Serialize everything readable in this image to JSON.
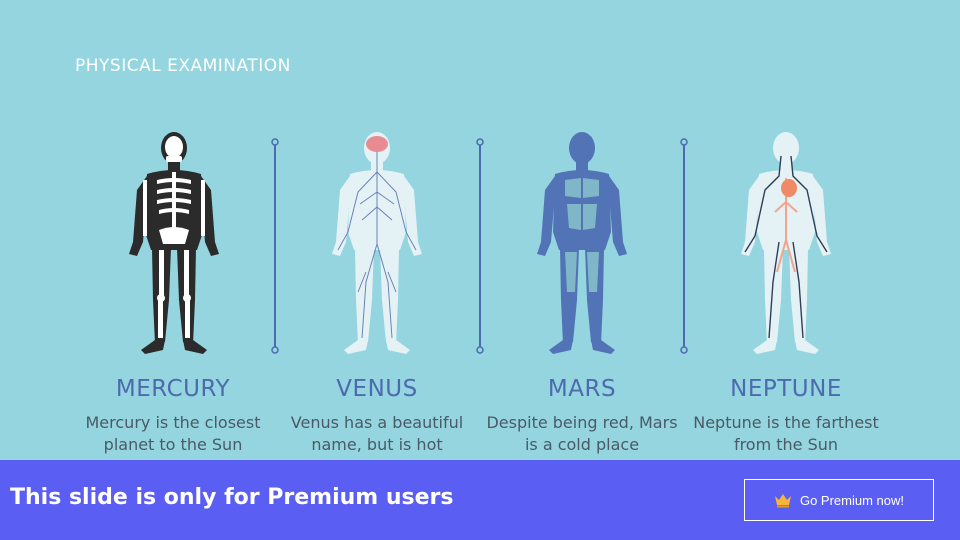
{
  "slide": {
    "title": "PHYSICAL EXAMINATION",
    "columns": [
      {
        "name": "MERCURY",
        "desc_line1": "Mercury is the closest",
        "desc_line2": "planet to the Sun",
        "icon": "skeleton-icon"
      },
      {
        "name": "VENUS",
        "desc_line1": "Venus has a beautiful",
        "desc_line2": "name, but is hot",
        "icon": "nervous-system-icon"
      },
      {
        "name": "MARS",
        "desc_line1": "Despite being red, Mars",
        "desc_line2": "is a cold place",
        "icon": "muscular-system-icon"
      },
      {
        "name": "NEPTUNE",
        "desc_line1": "Neptune is the farthest",
        "desc_line2": "from the Sun",
        "icon": "circulatory-system-icon"
      }
    ]
  },
  "banner": {
    "text": "This slide is only for Premium users",
    "button_label": "Go Premium now!",
    "button_icon": "crown-icon"
  },
  "colors": {
    "background": "#94d5df",
    "accent": "#4d6aae",
    "banner": "#5b5ef2"
  }
}
